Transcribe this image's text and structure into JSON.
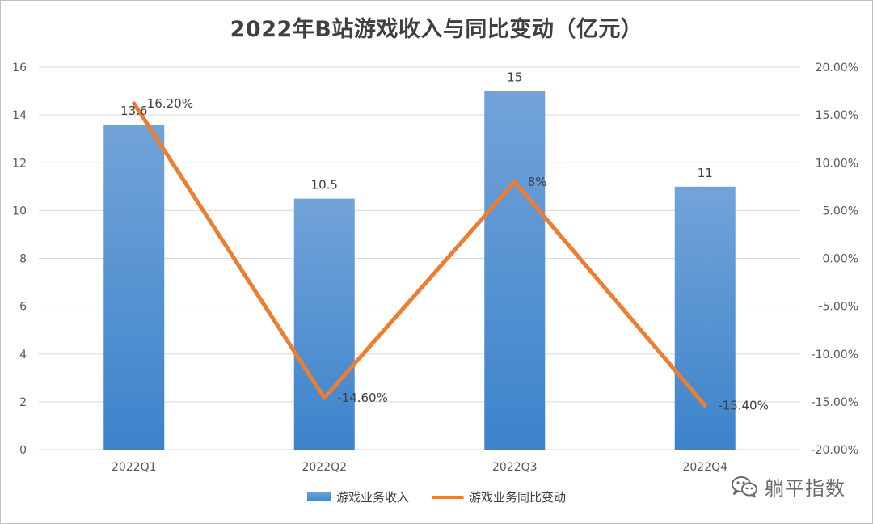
{
  "chart_data": {
    "type": "bar+line",
    "title": "2022年B站游戏收入与同比变动（亿元）",
    "categories": [
      "2022Q1",
      "2022Q2",
      "2022Q3",
      "2022Q4"
    ],
    "series": [
      {
        "name": "游戏业务收入",
        "type": "bar",
        "axis": "left",
        "values": [
          13.6,
          10.5,
          15,
          11
        ],
        "labels": [
          "13.6",
          "10.5",
          "15",
          "11"
        ]
      },
      {
        "name": "游戏业务同比变动",
        "type": "line",
        "axis": "right",
        "values": [
          16.2,
          -14.6,
          8,
          -15.4
        ],
        "labels": [
          "16.20%",
          "-14.60%",
          "8%",
          "-15.40%"
        ]
      }
    ],
    "ylim_left": [
      0,
      16
    ],
    "yticks_left": [
      "0",
      "2",
      "4",
      "6",
      "8",
      "10",
      "12",
      "14",
      "16"
    ],
    "ylim_right": [
      -20,
      20
    ],
    "yticks_right": [
      "-20.00%",
      "-15.00%",
      "-10.00%",
      "-5.00%",
      "0.00%",
      "5.00%",
      "10.00%",
      "15.00%",
      "20.00%"
    ],
    "grid": true,
    "legend_position": "bottom",
    "colors": {
      "bar_top": "#72a3d9",
      "bar_bottom": "#3c83cb",
      "line": "#ed7d31",
      "grid": "#d9d9d9",
      "text": "#595959"
    }
  },
  "watermark": {
    "text": "躺平指数",
    "icon": "wechat-icon"
  }
}
